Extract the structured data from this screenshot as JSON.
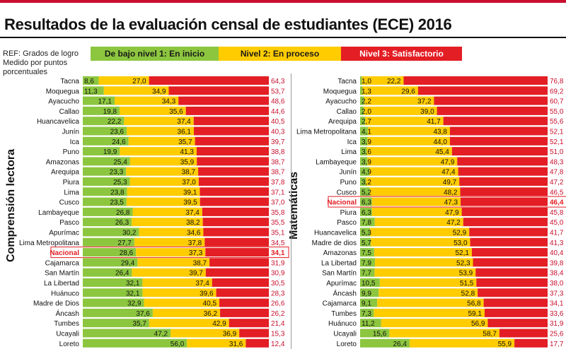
{
  "title": "Resultados de la evaluación censal de estudiantes (ECE) 2016",
  "ref": [
    "REF: Grados de logro",
    "Medido por puntos",
    "porcentuales"
  ],
  "legend": [
    "De bajo nivel 1: En inicio",
    "Nivel 2: En proceso",
    "Nivel 3: Satisfactorio"
  ],
  "colors": {
    "level1": "#8cc63f",
    "level2": "#ffcc00",
    "level3": "#e31e24",
    "highlight": "#e31e24",
    "header": "#c8102e"
  },
  "chart_data": [
    {
      "type": "bar",
      "stacked": "horizontal",
      "title": "Comprensión lectora",
      "categories": [
        "Tacna",
        "Moquegua",
        "Ayacucho",
        "Callao",
        "Huancavelica",
        "Junín",
        "Ica",
        "Puno",
        "Amazonas",
        "Arequipa",
        "Piura",
        "Lima",
        "Cusco",
        "Lambayeque",
        "Pasco",
        "Apurímac",
        "Lima Metropolitana",
        "Nacional",
        "Cajamarca",
        "San Martín",
        "La Libertad",
        "Huánuco",
        "Madre de Dios",
        "Áncash",
        "Tumbes",
        "Ucayali",
        "Loreto"
      ],
      "highlight": "Nacional",
      "series": [
        {
          "name": "De bajo nivel 1: En inicio",
          "values": [
            8.6,
            11.3,
            17.1,
            19.8,
            22.2,
            23.6,
            24.6,
            19.9,
            25.4,
            23.3,
            25.3,
            23.8,
            23.5,
            26.8,
            26.3,
            30.2,
            27.7,
            28.6,
            29.4,
            26.4,
            32.1,
            32.1,
            32.9,
            37.6,
            35.7,
            47.2,
            56.0
          ]
        },
        {
          "name": "Nivel 2: En proceso",
          "values": [
            27.0,
            34.9,
            34.3,
            35.6,
            37.4,
            36.1,
            35.7,
            41.3,
            35.9,
            38.7,
            37.0,
            39.1,
            39.5,
            37.4,
            38.2,
            34.6,
            37.8,
            37.3,
            38.7,
            39.7,
            37.4,
            39.6,
            40.5,
            36.2,
            42.9,
            36.9,
            31.6
          ]
        },
        {
          "name": "Nivel 3: Satisfactorio",
          "values": [
            64.3,
            53.7,
            48.6,
            44.6,
            40.5,
            40.3,
            39.7,
            38.8,
            38.7,
            38.7,
            37.8,
            37.1,
            37.0,
            35.8,
            35.5,
            35.1,
            34.5,
            34.1,
            31.9,
            30.9,
            30.5,
            28.3,
            26.6,
            26.2,
            21.4,
            15.3,
            12.4
          ]
        }
      ],
      "xlim": [
        0,
        100
      ]
    },
    {
      "type": "bar",
      "stacked": "horizontal",
      "title": "Matemáticas",
      "categories": [
        "Tacna",
        "Moquegua",
        "Ayacucho",
        "Callao",
        "Arequipa",
        "Lima Metropolitana",
        "Ica",
        "Lima",
        "Lambayeque",
        "Junín",
        "Puno",
        "Cusco",
        "Nacional",
        "Piura",
        "Pasco",
        "Huancavelica",
        "Madre de dios",
        "Amazonas",
        "La Libertad",
        "San Martín",
        "Apurímac",
        "Áncash",
        "Cajamarca",
        "Tumbes",
        "Huánuco",
        "Ucayali",
        "Loreto"
      ],
      "highlight": "Nacional",
      "series": [
        {
          "name": "De bajo nivel 1: En inicio",
          "values": [
            1.0,
            1.3,
            2.2,
            2.0,
            2.7,
            4.1,
            3.9,
            3.6,
            3.9,
            4.9,
            3.2,
            5.2,
            6.3,
            6.3,
            7.8,
            5.3,
            5.7,
            7.5,
            7.9,
            7.7,
            10.5,
            9.9,
            9.1,
            7.3,
            11.2,
            15.6,
            26.4
          ]
        },
        {
          "name": "Nivel 2: En proceso",
          "values": [
            22.2,
            29.6,
            37.2,
            39.0,
            41.7,
            43.8,
            44.0,
            45.4,
            47.9,
            47.4,
            49.7,
            48.2,
            47.3,
            47.9,
            47.2,
            52.9,
            53.0,
            52.1,
            52.3,
            53.9,
            51.5,
            52.8,
            56.8,
            59.1,
            56.9,
            58.7,
            55.9
          ]
        },
        {
          "name": "Nivel 3: Satisfactorio",
          "values": [
            76.8,
            69.2,
            60.7,
            55.0,
            55.6,
            52.1,
            52.1,
            51.0,
            48.3,
            47.8,
            47.2,
            46.5,
            46.4,
            45.8,
            45.0,
            41.7,
            41.3,
            40.4,
            39.8,
            38.4,
            38.0,
            37.3,
            34.1,
            33.6,
            31.9,
            25.6,
            17.7
          ]
        }
      ],
      "xlim": [
        0,
        100
      ]
    }
  ]
}
